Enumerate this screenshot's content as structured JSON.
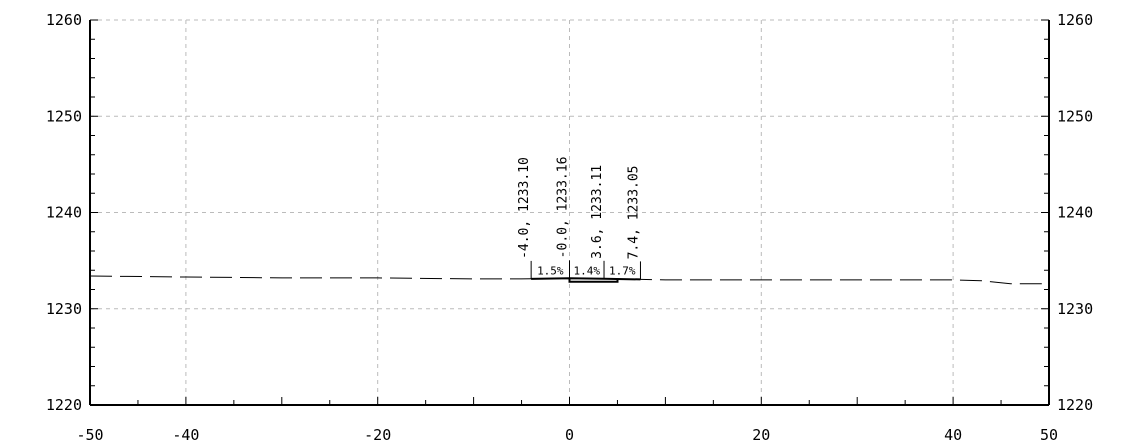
{
  "chart_data": {
    "type": "line",
    "title": "",
    "xlabel": "",
    "ylabel": "",
    "xlim": [
      -50,
      50
    ],
    "ylim": [
      1220,
      1260
    ],
    "x_ticks": [
      -50,
      -40,
      -20,
      0,
      20,
      40,
      50
    ],
    "y_ticks": [
      1220,
      1230,
      1240,
      1250,
      1260
    ],
    "grid": true,
    "series": [
      {
        "style": "dashed",
        "x": [
          -50,
          -40,
          -30,
          -20,
          -10,
          -5,
          0,
          5,
          10,
          20,
          30,
          40,
          43,
          46,
          50
        ],
        "y": [
          1233.4,
          1233.3,
          1233.2,
          1233.2,
          1233.1,
          1233.1,
          1233.15,
          1233.1,
          1233.0,
          1233.0,
          1233.0,
          1233.0,
          1232.9,
          1232.6,
          1232.6
        ]
      },
      {
        "style": "solid",
        "x": [
          -4.0,
          -0.0,
          3.6,
          7.4
        ],
        "y": [
          1233.1,
          1233.16,
          1233.11,
          1233.05
        ]
      },
      {
        "style": "solid",
        "x": [
          0,
          0,
          5,
          5
        ],
        "y": [
          1233.16,
          1232.8,
          1232.8,
          1233.0
        ]
      }
    ],
    "point_labels": [
      {
        "x": -4.0,
        "text": "-4.0,  1233.10"
      },
      {
        "x": -0.0,
        "text": "-0.0,  1233.16"
      },
      {
        "x": 3.6,
        "text": "3.6,  1233.11"
      },
      {
        "x": 7.4,
        "text": "7.4,  1233.05"
      }
    ],
    "slope_labels": [
      {
        "x": -2.0,
        "text": "1.5%"
      },
      {
        "x": 1.8,
        "text": "1.4%"
      },
      {
        "x": 5.5,
        "text": "1.7%"
      }
    ]
  }
}
